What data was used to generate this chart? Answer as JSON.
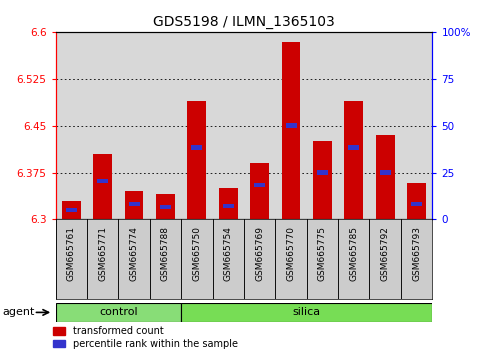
{
  "title": "GDS5198 / ILMN_1365103",
  "samples": [
    "GSM665761",
    "GSM665771",
    "GSM665774",
    "GSM665788",
    "GSM665750",
    "GSM665754",
    "GSM665769",
    "GSM665770",
    "GSM665775",
    "GSM665785",
    "GSM665792",
    "GSM665793"
  ],
  "groups": [
    "control",
    "control",
    "control",
    "control",
    "silica",
    "silica",
    "silica",
    "silica",
    "silica",
    "silica",
    "silica",
    "silica"
  ],
  "red_values": [
    6.33,
    6.405,
    6.345,
    6.34,
    6.49,
    6.35,
    6.39,
    6.583,
    6.425,
    6.49,
    6.435,
    6.358
  ],
  "blue_values": [
    6.315,
    6.362,
    6.325,
    6.32,
    6.415,
    6.322,
    6.355,
    6.45,
    6.375,
    6.415,
    6.375,
    6.325
  ],
  "ymin": 6.3,
  "ymax": 6.6,
  "yticks": [
    6.3,
    6.375,
    6.45,
    6.525,
    6.6
  ],
  "ytick_labels": [
    "6.3",
    "6.375",
    "6.45",
    "6.525",
    "6.6"
  ],
  "y2ticks": [
    0,
    25,
    50,
    75,
    100
  ],
  "y2tick_labels": [
    "0",
    "25",
    "50",
    "75",
    "100%"
  ],
  "bar_color": "#cc0000",
  "blue_color": "#3333cc",
  "control_color": "#88dd77",
  "silica_color": "#77dd55",
  "agent_label": "agent",
  "group_label_control": "control",
  "group_label_silica": "silica",
  "legend_red": "transformed count",
  "legend_blue": "percentile rank within the sample",
  "bar_width": 0.6,
  "blue_bar_width": 0.35,
  "blue_bar_height": 0.007,
  "plot_bg_color": "#d8d8d8"
}
